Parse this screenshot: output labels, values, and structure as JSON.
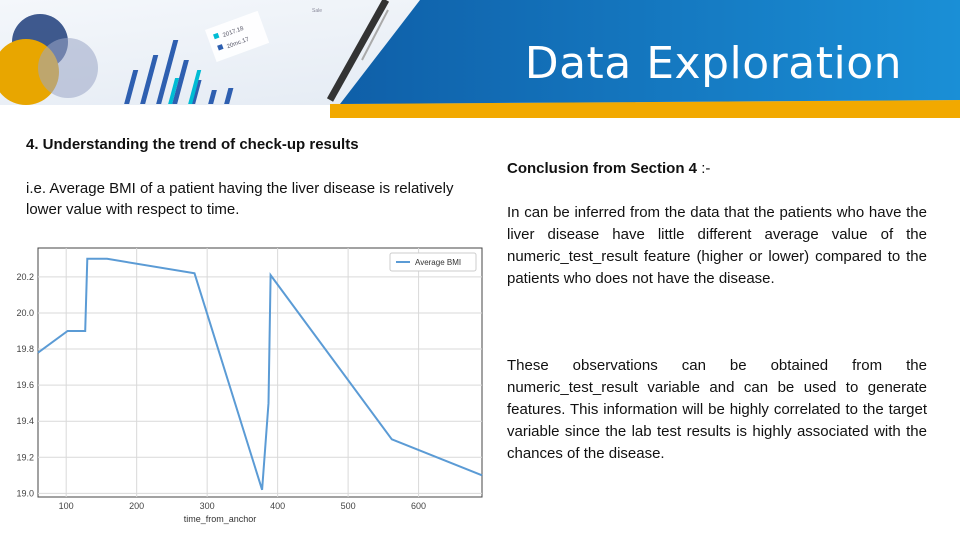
{
  "slide": {
    "title": "Data Exploration"
  },
  "left": {
    "heading": "4. Understanding the trend of check-up results",
    "body": "i.e. Average BMI of a patient having the liver disease is relatively lower value with respect to time."
  },
  "right": {
    "conclusion_label": "Conclusion from Section 4",
    "conclusion_suffix": " :-",
    "paragraph1": "In can be inferred from the data that the patients who have the liver disease have little different average value of the numeric_test_result feature (higher or lower) compared to the patients who does not have the disease.",
    "paragraph2": "These observations can be obtained from the numeric_test_result variable and can be used to generate features. This information will be highly correlated to the target variable since the lab test results is highly associated with the chances of the disease."
  },
  "header_graphic": {
    "card_label_1": "2017.18",
    "card_label_2": "20mc.17",
    "top_label": "Sale"
  },
  "colors": {
    "banner_blue": "#1a8fd6",
    "banner_dark": "#0f5fa8",
    "gold_band": "#f2a900",
    "line": "#5b9bd5"
  },
  "chart_data": {
    "type": "line",
    "xlabel": "time_from_anchor",
    "ylabel": "",
    "xlim": [
      60,
      690
    ],
    "ylim": [
      18.98,
      20.36
    ],
    "xticks": [
      100,
      200,
      300,
      400,
      500,
      600
    ],
    "yticks": [
      19.0,
      19.2,
      19.4,
      19.6,
      19.8,
      20.0,
      20.2
    ],
    "ytick_labels": [
      "19.0",
      "19.2",
      "19.4",
      "19.6",
      "19.8",
      "20.0",
      "20.2"
    ],
    "grid": true,
    "legend": "top-right",
    "series": [
      {
        "name": "Average BMI",
        "x": [
          60,
          102,
          127,
          130,
          158,
          282,
          378,
          387,
          390,
          562,
          690
        ],
        "y": [
          19.78,
          19.9,
          19.9,
          20.3,
          20.3,
          20.22,
          19.02,
          19.5,
          20.21,
          19.3,
          19.1
        ]
      }
    ]
  }
}
